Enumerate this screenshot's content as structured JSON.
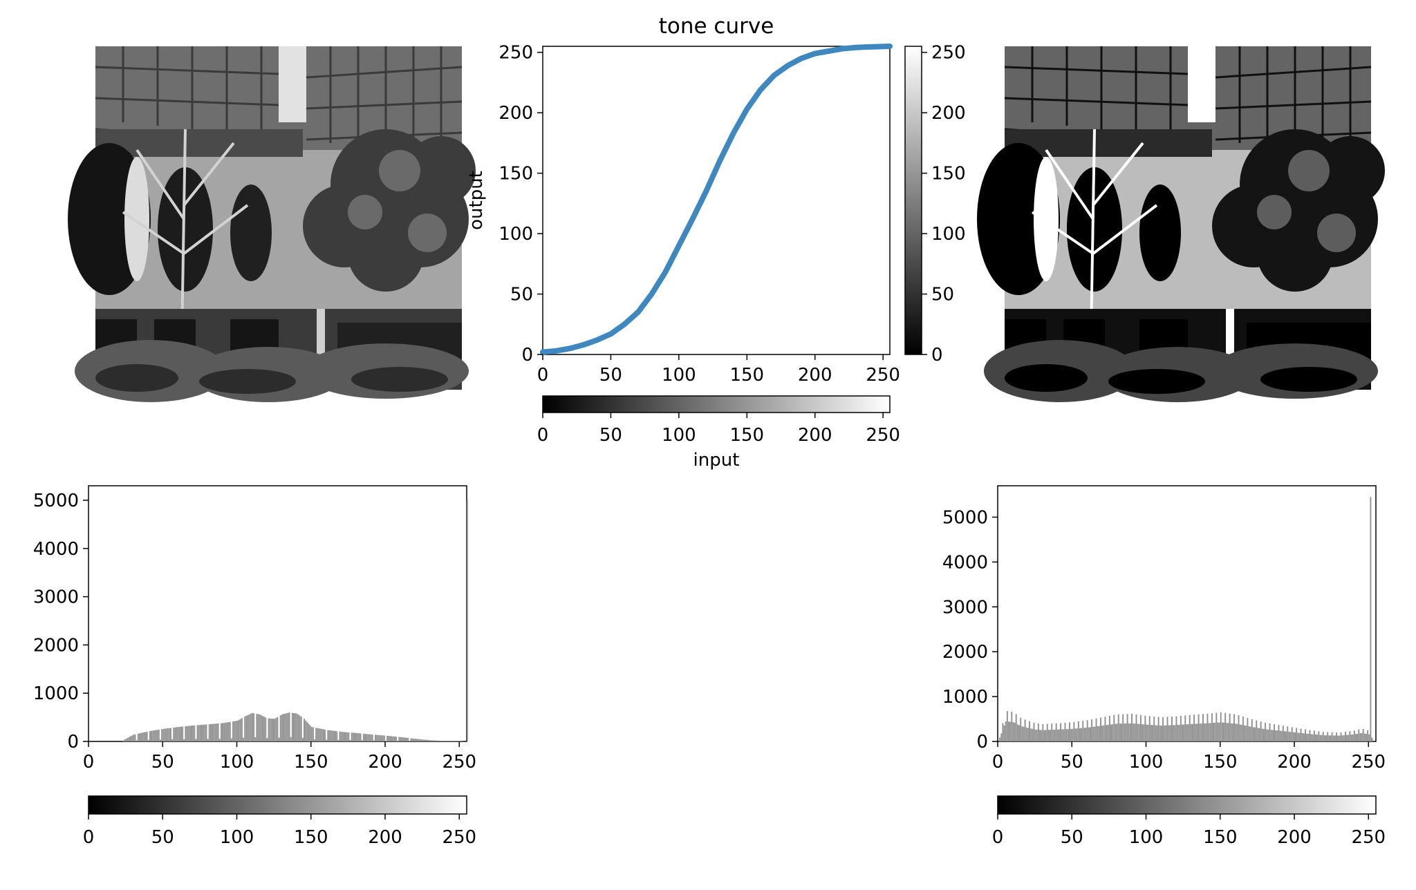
{
  "chart_data": [
    {
      "id": "tone-curve",
      "type": "line",
      "title": "tone curve",
      "xlabel": "input",
      "ylabel": "output",
      "xlim": [
        0,
        255
      ],
      "ylim": [
        0,
        255
      ],
      "xticks": [
        "0",
        "50",
        "100",
        "150",
        "200",
        "250"
      ],
      "yticks": [
        "0",
        "50",
        "100",
        "150",
        "200",
        "250"
      ],
      "grid": false,
      "line_color": "#3e88bf",
      "series": [
        {
          "x": [
            0,
            10,
            20,
            30,
            40,
            50,
            60,
            70,
            80,
            90,
            100,
            110,
            120,
            130,
            140,
            150,
            160,
            170,
            180,
            190,
            200,
            210,
            220,
            230,
            240,
            255
          ],
          "y": [
            2,
            3,
            5,
            8,
            12,
            17,
            25,
            35,
            50,
            68,
            90,
            112,
            135,
            160,
            183,
            203,
            219,
            231,
            239,
            245,
            249,
            251,
            253,
            254,
            254.5,
            255
          ]
        }
      ],
      "colorbars": [
        {
          "orientation": "vertical",
          "cmap": "gray",
          "range": [
            0,
            255
          ],
          "ticks": [
            "0",
            "50",
            "100",
            "150",
            "200",
            "250"
          ]
        },
        {
          "orientation": "horizontal",
          "cmap": "gray",
          "range": [
            0,
            255
          ],
          "ticks": [
            "0",
            "50",
            "100",
            "150",
            "200",
            "250"
          ]
        }
      ]
    },
    {
      "id": "histogram-original",
      "type": "bar",
      "xlim": [
        0,
        255
      ],
      "ylim": [
        0,
        5300
      ],
      "xticks": [
        "0",
        "50",
        "100",
        "150",
        "200",
        "250"
      ],
      "yticks": [
        "0",
        "1000",
        "2000",
        "3000",
        "4000",
        "5000"
      ],
      "bar_color": "#929292",
      "grid": false,
      "profile_x": [
        0,
        22,
        25,
        30,
        40,
        50,
        60,
        70,
        80,
        90,
        100,
        105,
        110,
        115,
        120,
        125,
        130,
        135,
        140,
        145,
        150,
        160,
        170,
        180,
        190,
        200,
        210,
        220,
        230,
        240,
        250,
        253
      ],
      "profile_y": [
        0,
        0,
        60,
        140,
        210,
        260,
        300,
        330,
        355,
        380,
        430,
        520,
        590,
        560,
        480,
        470,
        560,
        600,
        580,
        470,
        300,
        240,
        200,
        175,
        145,
        120,
        90,
        55,
        25,
        12,
        8,
        0
      ],
      "gaps_every": 8,
      "outliers": [
        {
          "x": 255,
          "y": 5000
        }
      ],
      "colorbar": {
        "orientation": "horizontal",
        "cmap": "gray",
        "range": [
          0,
          255
        ],
        "ticks": [
          "0",
          "50",
          "100",
          "150",
          "200",
          "250"
        ]
      }
    },
    {
      "id": "histogram-adjusted",
      "type": "bar",
      "xlim": [
        0,
        255
      ],
      "ylim": [
        0,
        5700
      ],
      "xticks": [
        "0",
        "50",
        "100",
        "150",
        "200",
        "250"
      ],
      "yticks": [
        "0",
        "1000",
        "2000",
        "3000",
        "4000",
        "5000"
      ],
      "bar_color": "#929292",
      "grid": false,
      "profile_x": [
        0,
        5,
        10,
        15,
        20,
        25,
        30,
        40,
        50,
        60,
        70,
        80,
        90,
        100,
        110,
        120,
        130,
        140,
        150,
        160,
        170,
        180,
        190,
        200,
        210,
        220,
        230,
        240,
        245,
        250,
        253
      ],
      "profile_y": [
        0,
        620,
        600,
        480,
        420,
        370,
        350,
        370,
        390,
        430,
        490,
        550,
        560,
        520,
        490,
        510,
        540,
        560,
        590,
        550,
        460,
        380,
        330,
        280,
        230,
        190,
        180,
        220,
        260,
        220,
        0
      ],
      "spike_every": 3,
      "outliers": [
        {
          "x": 251,
          "y": 5450
        }
      ],
      "colorbar": {
        "orientation": "horizontal",
        "cmap": "gray",
        "range": [
          0,
          255
        ],
        "ticks": [
          "0",
          "50",
          "100",
          "150",
          "200",
          "250"
        ]
      }
    }
  ],
  "images": [
    {
      "name": "original-photo",
      "description_icon": "building-tree-photo"
    },
    {
      "name": "adjusted-photo",
      "description_icon": "building-tree-photo-contrast"
    }
  ]
}
